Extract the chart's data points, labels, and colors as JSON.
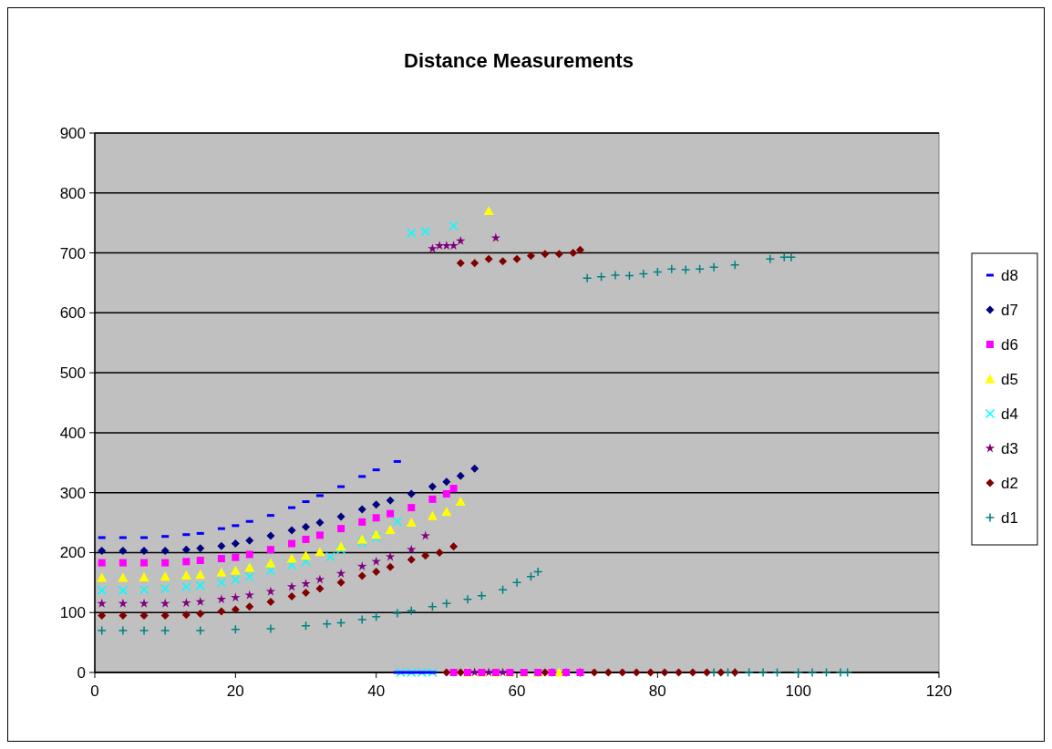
{
  "chart_data": {
    "type": "scatter",
    "title": "Distance Measurements",
    "xlim": [
      0,
      120
    ],
    "xticks": [
      0,
      20,
      40,
      60,
      80,
      100,
      120
    ],
    "ylim": [
      0,
      900
    ],
    "yticks": [
      0,
      100,
      200,
      300,
      400,
      500,
      600,
      700,
      800,
      900
    ],
    "grid": "y",
    "legend": "right",
    "series": [
      {
        "name": "d8",
        "color": "#0000ff",
        "x": [
          1,
          4,
          7,
          10,
          13,
          15,
          18,
          20,
          22,
          25,
          28,
          30,
          32,
          35,
          38,
          40,
          43,
          43,
          44,
          45,
          46,
          47,
          48
        ],
        "values": [
          225,
          225,
          225,
          227,
          230,
          232,
          240,
          245,
          252,
          262,
          275,
          285,
          295,
          310,
          327,
          338,
          352,
          0,
          0,
          0,
          0,
          0,
          0
        ]
      },
      {
        "name": "d7",
        "color": "#000080",
        "marker": "diamond",
        "x": [
          1,
          4,
          7,
          10,
          13,
          15,
          18,
          20,
          22,
          25,
          28,
          30,
          32,
          35,
          38,
          40,
          42,
          45,
          48,
          50,
          52,
          54
        ],
        "values": [
          203,
          203,
          203,
          203,
          205,
          207,
          211,
          215,
          220,
          228,
          237,
          243,
          250,
          260,
          272,
          280,
          287,
          298,
          310,
          318,
          328,
          340
        ]
      },
      {
        "name": "d6",
        "color": "#ff00ff",
        "marker": "square",
        "x": [
          1,
          4,
          7,
          10,
          13,
          15,
          18,
          20,
          22,
          25,
          28,
          30,
          32,
          35,
          38,
          40,
          42,
          45,
          48,
          50,
          51,
          51,
          53,
          55,
          57,
          59,
          61,
          63,
          65,
          67,
          69
        ],
        "values": [
          183,
          183,
          183,
          183,
          185,
          187,
          190,
          192,
          197,
          205,
          215,
          222,
          229,
          240,
          251,
          258,
          265,
          275,
          289,
          298,
          307,
          0,
          0,
          0,
          0,
          0,
          0,
          0,
          0,
          0,
          0
        ]
      },
      {
        "name": "d5",
        "color": "#ffff00",
        "marker": "triangle",
        "x": [
          1,
          4,
          7,
          10,
          13,
          15,
          18,
          20,
          22,
          25,
          28,
          30,
          32,
          35,
          38,
          40,
          42,
          45,
          48,
          50,
          52,
          56,
          53,
          55,
          57,
          59,
          61,
          63,
          66
        ],
        "values": [
          158,
          158,
          159,
          160,
          162,
          163,
          167,
          170,
          175,
          182,
          190,
          195,
          201,
          210,
          222,
          230,
          238,
          250,
          261,
          268,
          285,
          770,
          0,
          0,
          0,
          0,
          0,
          0,
          0
        ]
      },
      {
        "name": "d4",
        "color": "#00ffff",
        "marker": "x",
        "x": [
          1,
          4,
          7,
          10,
          13,
          15,
          18,
          20,
          22,
          25,
          28,
          30,
          33.5,
          35,
          38,
          40,
          43,
          45,
          47,
          51,
          43.5,
          45,
          46.5,
          48
        ],
        "values": [
          137,
          137,
          138,
          140,
          143,
          145,
          150,
          155,
          160,
          170,
          179,
          185,
          193,
          205,
          217,
          225,
          252,
          733,
          736,
          745,
          0,
          0,
          0,
          0
        ]
      },
      {
        "name": "d3",
        "color": "#800080",
        "marker": "star",
        "x": [
          1,
          4,
          7,
          10,
          13,
          15,
          18,
          20,
          22,
          25,
          28,
          30,
          32,
          35,
          38,
          40,
          42,
          45,
          47,
          48,
          49,
          50,
          51,
          52,
          57,
          54,
          55,
          56,
          57,
          58,
          59
        ],
        "values": [
          115,
          115,
          115,
          115,
          116,
          118,
          122,
          125,
          129,
          135,
          143,
          148,
          155,
          165,
          177,
          185,
          193,
          205,
          228,
          707,
          712,
          712,
          712,
          720,
          725,
          0,
          0,
          0,
          0,
          0,
          0
        ]
      },
      {
        "name": "d2",
        "color": "#800000",
        "marker": "diamond",
        "x": [
          1,
          4,
          7,
          10,
          13,
          15,
          18,
          20,
          22,
          25,
          28,
          30,
          32,
          35,
          38,
          40,
          42,
          45,
          47,
          49,
          51,
          52,
          54,
          56,
          58,
          60,
          62,
          64,
          66,
          68,
          69,
          50,
          52,
          64,
          69,
          71,
          73,
          75,
          77,
          79,
          81,
          83,
          85,
          87,
          89,
          91
        ],
        "values": [
          95,
          95,
          95,
          95,
          96,
          98,
          102,
          105,
          110,
          118,
          127,
          133,
          140,
          150,
          161,
          168,
          176,
          188,
          195,
          200,
          210,
          683,
          683,
          690,
          686,
          690,
          695,
          698,
          698,
          700,
          705,
          0,
          0,
          0,
          0,
          0,
          0,
          0,
          0,
          0,
          0,
          0,
          0,
          0,
          0,
          0
        ]
      },
      {
        "name": "d1",
        "color": "#008080",
        "marker": "cross",
        "x": [
          1,
          4,
          7,
          10,
          15,
          20,
          25,
          30,
          33,
          35,
          38,
          40,
          43,
          45,
          48,
          50,
          53,
          55,
          58,
          60,
          62,
          63,
          70,
          72,
          74,
          76,
          78,
          80,
          82,
          84,
          86,
          88,
          91,
          96,
          98,
          99,
          63,
          65,
          67,
          69,
          88,
          90,
          91,
          93,
          95,
          97,
          100,
          102,
          104,
          106,
          107
        ],
        "values": [
          70,
          70,
          70,
          70,
          70,
          72,
          73,
          78,
          81,
          83,
          88,
          93,
          99,
          103,
          110,
          115,
          122,
          128,
          138,
          150,
          160,
          168,
          658,
          660,
          663,
          662,
          665,
          668,
          673,
          672,
          673,
          676,
          680,
          690,
          693,
          693,
          0,
          0,
          0,
          0,
          0,
          0,
          0,
          0,
          0,
          0,
          0,
          0,
          0,
          0,
          0
        ]
      }
    ]
  }
}
